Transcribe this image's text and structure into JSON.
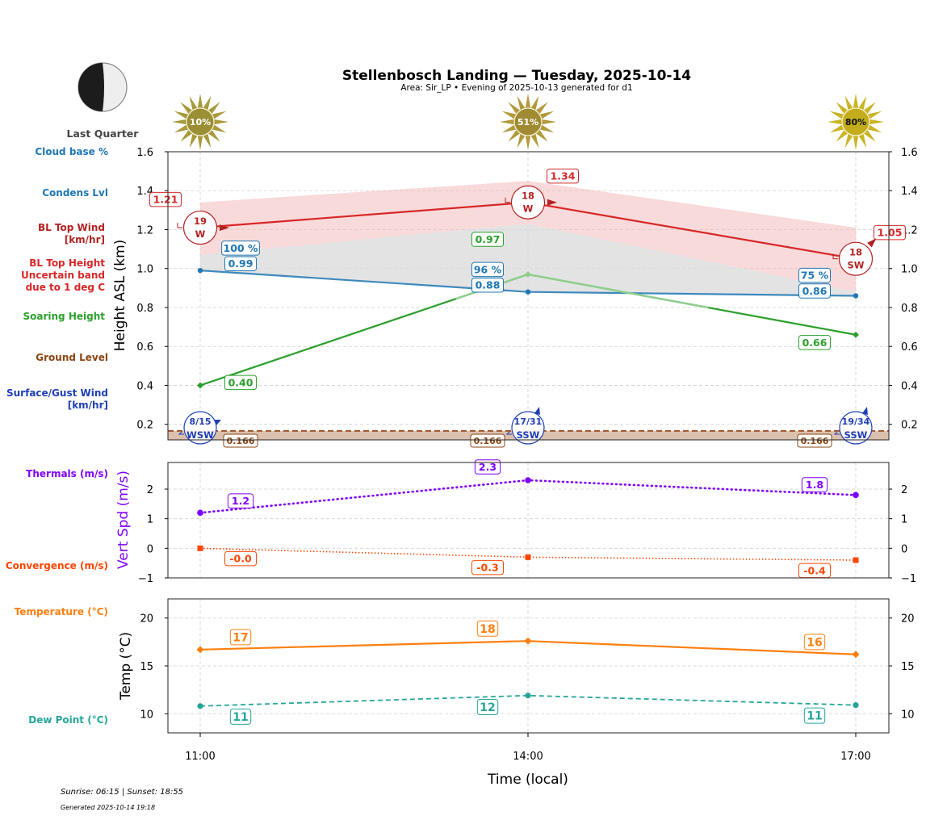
{
  "header": {
    "title": "Stellenbosch Landing — Tuesday, 2025-10-14",
    "subtitle": "Area: Sir_LP • Evening of 2025-10-13 generated for d1",
    "moon_phase": "Last Quarter"
  },
  "footer": {
    "sun_times": "Sunrise: 06:15 | Sunset: 18:55",
    "generated": "Generated 2025-10-14 19:18"
  },
  "legend_labels": {
    "cloud_base": "Cloud base %",
    "condens": "Condens Lvl",
    "bl_wind_1": "BL Top Wind",
    "bl_wind_2": "[km/hr]",
    "bl_height_1": "BL Top Height",
    "bl_height_2": "Uncertain band",
    "bl_height_3": "due to 1 deg C",
    "soaring": "Soaring Height",
    "ground": "Ground Level",
    "surface_1": "Surface/Gust Wind",
    "surface_2": "[km/hr]",
    "thermals": "Thermals (m/s)",
    "convergence": "Convergence (m/s)",
    "temperature": "Temperature (°C)",
    "dewpoint": "Dew Point (°C)"
  },
  "colors": {
    "cloud": "#1f77b4",
    "bl": "#d62728",
    "bl_dark": "#b22222",
    "soaring": "#2ca02c",
    "ground": "#8b4513",
    "surface": "#1f3fb4",
    "thermals": "#7f00ff",
    "convergence": "#ff4500",
    "temperature": "#ff7f0e",
    "dewpoint": "#26a69a"
  },
  "chart_data": [
    {
      "type": "line",
      "panel": "heights",
      "title": "Stellenbosch Landing — Tuesday, 2025-10-14",
      "xlabel": "Time (local)",
      "ylabel": "Height ASL (km)",
      "x": [
        "11:00",
        "14:00",
        "17:00"
      ],
      "ylim": [
        0.12,
        1.6
      ],
      "yticks": [
        0.2,
        0.4,
        0.6,
        0.8,
        1.0,
        1.2,
        1.4,
        1.6
      ],
      "ytick_labels": [
        "0.2",
        "0.4",
        "0.6",
        "0.8",
        "1.0",
        "1.2",
        "1.4",
        "1.6"
      ],
      "grid": true,
      "sun_percent": [
        "10%",
        "51%",
        "80%"
      ],
      "series": [
        {
          "name": "BL Top Height",
          "values": [
            1.21,
            1.34,
            1.05
          ],
          "labels": [
            "1.21",
            "1.34",
            "1.05"
          ]
        },
        {
          "name": "BL Top Height upper band",
          "values": [
            1.34,
            1.45,
            1.21
          ]
        },
        {
          "name": "BL Top Height lower band",
          "values": [
            1.07,
            1.23,
            0.88
          ]
        },
        {
          "name": "Condensation Level",
          "values": [
            0.99,
            0.88,
            0.86
          ],
          "labels": [
            "0.99",
            "0.88",
            "0.86"
          ]
        },
        {
          "name": "Cloud base %",
          "values": [
            100,
            96,
            75
          ],
          "labels": [
            "100 %",
            "96 %",
            "75 %"
          ]
        },
        {
          "name": "Soaring Height",
          "values": [
            0.4,
            0.97,
            0.66
          ],
          "labels": [
            "0.40",
            "0.97",
            "0.66"
          ]
        },
        {
          "name": "Ground Level",
          "values": [
            0.166,
            0.166,
            0.166
          ],
          "labels": [
            "0.166",
            "0.166",
            "0.166"
          ]
        }
      ],
      "bl_wind": [
        {
          "speed": "19",
          "dir": "W"
        },
        {
          "speed": "18",
          "dir": "W"
        },
        {
          "speed": "18",
          "dir": "SW"
        }
      ],
      "surface_wind": [
        {
          "speed": "8/15",
          "dir": "WSW"
        },
        {
          "speed": "17/31",
          "dir": "SSW"
        },
        {
          "speed": "19/34",
          "dir": "SSW"
        }
      ]
    },
    {
      "type": "line",
      "panel": "vertical_speed",
      "ylabel": "Vert Spd (m/s)",
      "x": [
        "11:00",
        "14:00",
        "17:00"
      ],
      "ylim": [
        -1,
        2.9
      ],
      "yticks": [
        -1,
        0,
        1,
        2
      ],
      "ytick_labels": [
        "−1",
        "0",
        "1",
        "2"
      ],
      "grid": true,
      "series": [
        {
          "name": "Thermals (m/s)",
          "values": [
            1.2,
            2.3,
            1.8
          ],
          "labels": [
            "1.2",
            "2.3",
            "1.8"
          ]
        },
        {
          "name": "Convergence (m/s)",
          "values": [
            0.0,
            -0.3,
            -0.4
          ],
          "labels": [
            "-0.0",
            "-0.3",
            "-0.4"
          ]
        }
      ]
    },
    {
      "type": "line",
      "panel": "temperature",
      "ylabel": "Temp (°C)",
      "xlabel": "Time (local)",
      "x": [
        "11:00",
        "14:00",
        "17:00"
      ],
      "ylim": [
        8,
        22
      ],
      "yticks": [
        10,
        15,
        20
      ],
      "ytick_labels": [
        "10",
        "15",
        "20"
      ],
      "grid": true,
      "series": [
        {
          "name": "Temperature (°C)",
          "values": [
            16.7,
            17.6,
            16.2
          ],
          "labels": [
            "17",
            "18",
            "16"
          ]
        },
        {
          "name": "Dew Point (°C)",
          "values": [
            10.8,
            11.9,
            10.9
          ],
          "labels": [
            "11",
            "12",
            "11"
          ]
        }
      ]
    }
  ]
}
